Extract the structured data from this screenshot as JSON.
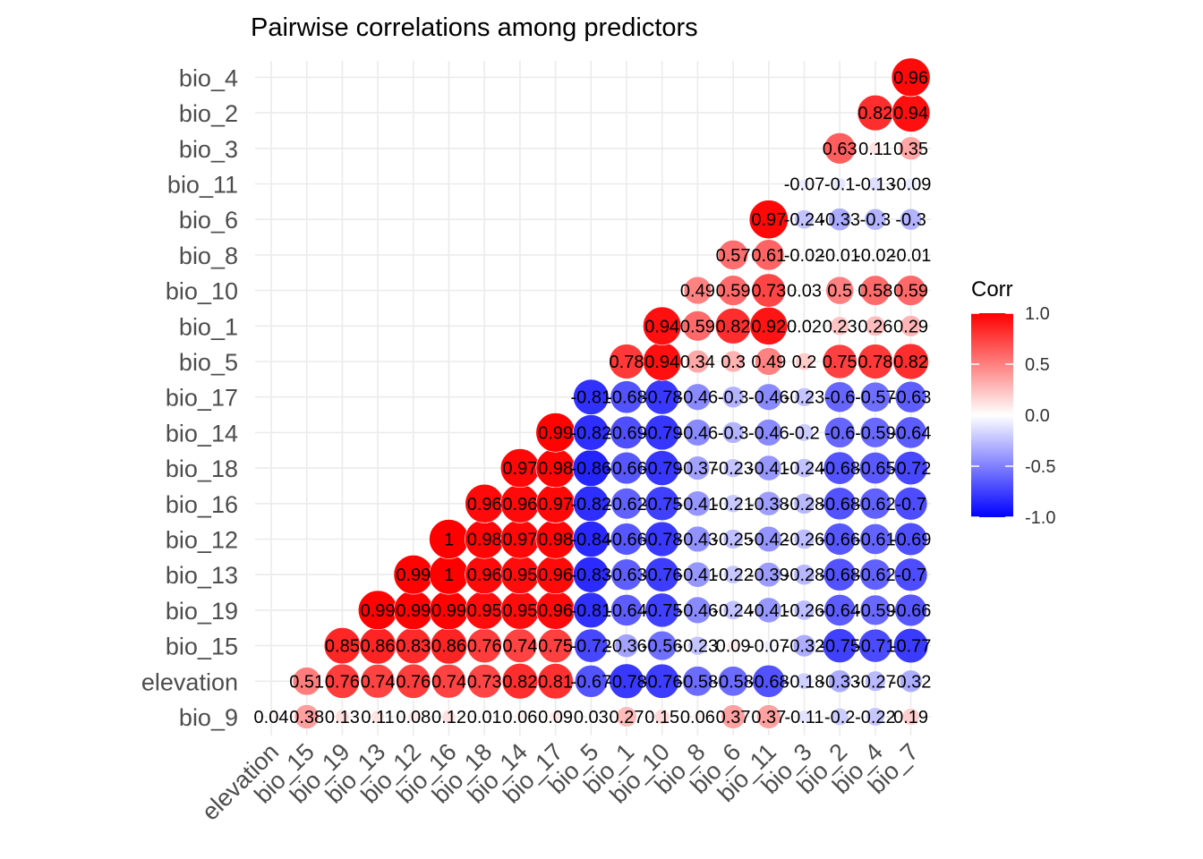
{
  "chart_data": {
    "type": "heatmap",
    "title": "Pairwise correlations among predictors",
    "xlabel": "",
    "ylabel": "",
    "x_labels": [
      "elevation",
      "bio_15",
      "bio_19",
      "bio_13",
      "bio_12",
      "bio_16",
      "bio_18",
      "bio_14",
      "bio_17",
      "bio_5",
      "bio_1",
      "bio_10",
      "bio_8",
      "bio_6",
      "bio_11",
      "bio_3",
      "bio_2",
      "bio_4",
      "bio_7"
    ],
    "y_labels": [
      "bio_9",
      "elevation",
      "bio_15",
      "bio_19",
      "bio_13",
      "bio_12",
      "bio_16",
      "bio_18",
      "bio_14",
      "bio_17",
      "bio_5",
      "bio_1",
      "bio_10",
      "bio_8",
      "bio_6",
      "bio_11",
      "bio_3",
      "bio_2",
      "bio_4"
    ],
    "rows": [
      [
        "0.04",
        "0.38",
        "0.13",
        "0.11",
        "0.08",
        "0.12",
        "0.01",
        "0.06",
        "0.09",
        "0.03",
        "0.27",
        "0.15",
        "0.06",
        "0.37",
        "0.37",
        "-0.11",
        "-0.2",
        "-0.22",
        "0.19"
      ],
      [
        "",
        "0.51",
        "0.76",
        "0.74",
        "0.76",
        "0.74",
        "0.73",
        "0.82",
        "0.81",
        "-0.67",
        "-0.78",
        "-0.76",
        "-0.58",
        "-0.58",
        "-0.68",
        "-0.18",
        "-0.33",
        "-0.27",
        "-0.32"
      ],
      [
        "",
        "",
        "0.85",
        "0.86",
        "0.83",
        "0.86",
        "0.76",
        "0.74",
        "0.75",
        "-0.72",
        "-0.36",
        "-0.56",
        "-0.23",
        "0.09",
        "-0.07",
        "-0.32",
        "-0.75",
        "-0.71",
        "-0.77"
      ],
      [
        "",
        "",
        "",
        "0.99",
        "0.99",
        "0.99",
        "0.95",
        "0.95",
        "0.96",
        "-0.81",
        "-0.64",
        "-0.75",
        "-0.46",
        "-0.24",
        "-0.41",
        "-0.26",
        "-0.64",
        "-0.59",
        "-0.66"
      ],
      [
        "",
        "",
        "",
        "",
        "0.99",
        "1",
        "0.96",
        "0.95",
        "0.96",
        "-0.83",
        "-0.63",
        "-0.76",
        "-0.41",
        "-0.22",
        "-0.39",
        "-0.28",
        "-0.68",
        "-0.62",
        "-0.7"
      ],
      [
        "",
        "",
        "",
        "",
        "",
        "1",
        "0.98",
        "0.97",
        "0.98",
        "-0.84",
        "-0.66",
        "-0.78",
        "-0.43",
        "-0.25",
        "-0.42",
        "-0.26",
        "-0.66",
        "-0.61",
        "-0.69"
      ],
      [
        "",
        "",
        "",
        "",
        "",
        "",
        "0.96",
        "0.96",
        "0.97",
        "-0.82",
        "-0.62",
        "-0.75",
        "-0.41",
        "-0.21",
        "-0.38",
        "-0.28",
        "-0.68",
        "-0.62",
        "-0.7"
      ],
      [
        "",
        "",
        "",
        "",
        "",
        "",
        "",
        "0.97",
        "0.98",
        "-0.86",
        "-0.66",
        "-0.79",
        "-0.37",
        "-0.23",
        "-0.41",
        "-0.24",
        "-0.68",
        "-0.65",
        "-0.72"
      ],
      [
        "",
        "",
        "",
        "",
        "",
        "",
        "",
        "",
        "0.99",
        "-0.82",
        "-0.69",
        "-0.79",
        "-0.46",
        "-0.3",
        "-0.46",
        "-0.2",
        "-0.6",
        "-0.59",
        "-0.64"
      ],
      [
        "",
        "",
        "",
        "",
        "",
        "",
        "",
        "",
        "",
        "-0.81",
        "-0.68",
        "-0.78",
        "-0.46",
        "-0.3",
        "-0.46",
        "-0.23",
        "-0.6",
        "-0.57",
        "-0.63"
      ],
      [
        "",
        "",
        "",
        "",
        "",
        "",
        "",
        "",
        "",
        "",
        "0.78",
        "0.94",
        "0.34",
        "0.3",
        "0.49",
        "0.2",
        "0.75",
        "0.78",
        "0.82"
      ],
      [
        "",
        "",
        "",
        "",
        "",
        "",
        "",
        "",
        "",
        "",
        "",
        "0.94",
        "0.59",
        "0.82",
        "0.92",
        "0.02",
        "0.23",
        "0.26",
        "0.29"
      ],
      [
        "",
        "",
        "",
        "",
        "",
        "",
        "",
        "",
        "",
        "",
        "",
        "",
        "0.49",
        "0.59",
        "0.73",
        "0.03",
        "0.5",
        "0.58",
        "0.59"
      ],
      [
        "",
        "",
        "",
        "",
        "",
        "",
        "",
        "",
        "",
        "",
        "",
        "",
        "",
        "0.57",
        "0.61",
        "-0.02",
        "-0.01",
        "-0.02",
        "-0.01"
      ],
      [
        "",
        "",
        "",
        "",
        "",
        "",
        "",
        "",
        "",
        "",
        "",
        "",
        "",
        "",
        "0.97",
        "-0.24",
        "-0.33",
        "-0.3",
        "-0.3"
      ],
      [
        "",
        "",
        "",
        "",
        "",
        "",
        "",
        "",
        "",
        "",
        "",
        "",
        "",
        "",
        "",
        "-0.07",
        "-0.1",
        "-0.13",
        "-0.09"
      ],
      [
        "",
        "",
        "",
        "",
        "",
        "",
        "",
        "",
        "",
        "",
        "",
        "",
        "",
        "",
        "",
        "",
        "0.63",
        "0.11",
        "0.35"
      ],
      [
        "",
        "",
        "",
        "",
        "",
        "",
        "",
        "",
        "",
        "",
        "",
        "",
        "",
        "",
        "",
        "",
        "",
        "0.82",
        "0.94"
      ],
      [
        "",
        "",
        "",
        "",
        "",
        "",
        "",
        "",
        "",
        "",
        "",
        "",
        "",
        "",
        "",
        "",
        "",
        "",
        "0.96"
      ]
    ],
    "value_range": [
      -1,
      1
    ],
    "grid": true,
    "legend": {
      "title": "Corr",
      "placement": "right",
      "ticks": [
        "1.0",
        "0.5",
        "0.0",
        "-0.5",
        "-1.0"
      ],
      "low_color": "#0000ff",
      "mid_color": "#ffffff",
      "high_color": "#ff0000"
    }
  }
}
